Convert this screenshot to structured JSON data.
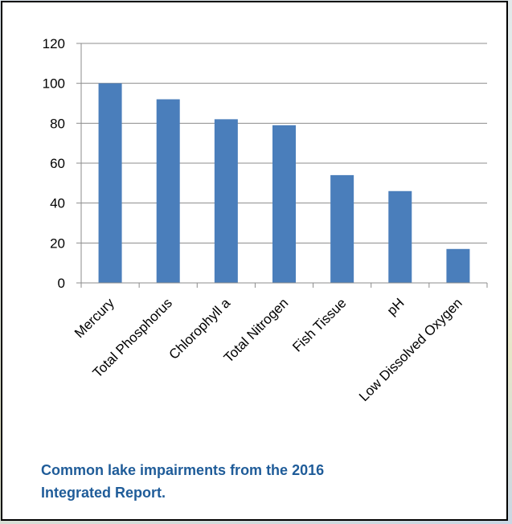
{
  "chart_data": {
    "type": "bar",
    "categories": [
      "Mercury",
      "Total Phosphorus",
      "Chlorophyll a",
      "Total Nitrogen",
      "Fish Tissue",
      "pH",
      "Low Dissolved Oxygen"
    ],
    "values": [
      100,
      92,
      82,
      79,
      54,
      46,
      17
    ],
    "title": "",
    "xlabel": "",
    "ylabel": "",
    "ylim": [
      0,
      120
    ],
    "yticks": [
      0,
      20,
      40,
      60,
      80,
      100,
      120
    ],
    "grid": true,
    "legend": "none",
    "bar_color": "#4a7ebb"
  },
  "caption": "Common lake impairments from the 2016 Integrated Report."
}
